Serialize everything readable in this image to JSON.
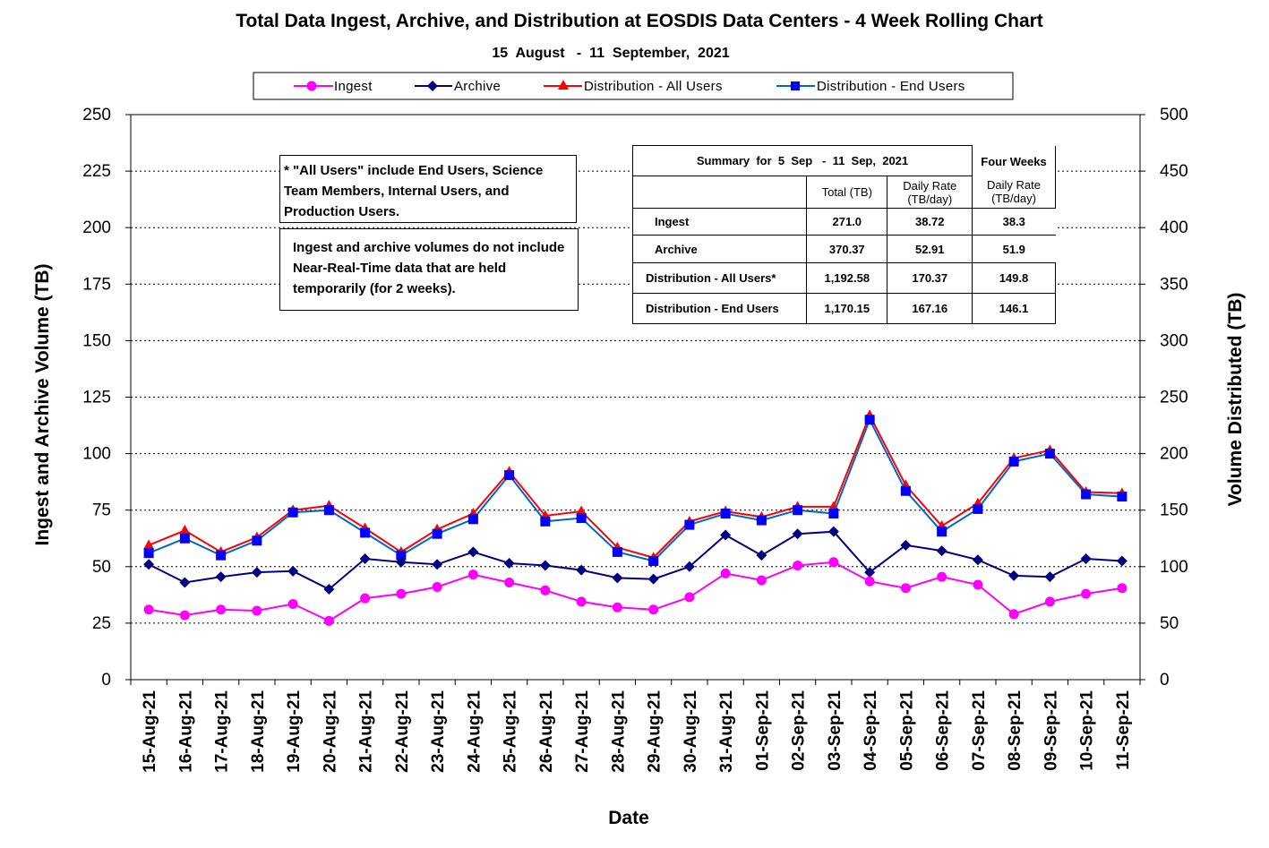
{
  "title": "Total Data Ingest, Archive, and  Distribution at EOSDIS Data Centers - 4 Week Rolling Chart",
  "subtitle": "15  August   -  11  September,  2021",
  "notes": {
    "all_users": " * \"All Users\" include End Users, Science Team Members,  Internal Users, and Production Users.",
    "nrt": "Ingest and archive volumes do not include Near-Real-Time data that are held temporarily (for 2 weeks)."
  },
  "summary": {
    "header": "Summary  for  5  Sep   -  11  Sep,  2021",
    "four_weeks": "Four Weeks",
    "col_total": "Total (TB)",
    "col_daily": "Daily Rate (TB/day)",
    "col_daily4": "Daily Rate (TB/day)",
    "rows": [
      {
        "label": "Ingest",
        "total": "271.0",
        "daily": "38.72",
        "four": "38.3"
      },
      {
        "label": "Archive",
        "total": "370.37",
        "daily": "52.91",
        "four": "51.9"
      },
      {
        "label": "Distribution - All Users*",
        "total": "1,192.58",
        "daily": "170.37",
        "four": "149.8"
      },
      {
        "label": "Distribution - End Users",
        "total": "1,170.15",
        "daily": "167.16",
        "four": "146.1"
      }
    ]
  },
  "colors": {
    "ingest": "#ff00ff",
    "archive": "#000080",
    "dist_all": "#ff0000",
    "dist_end": "#0066cc",
    "dist_end_marker": "#0000ff",
    "grid": "#000000"
  },
  "chart_data": {
    "type": "line",
    "title": "Total Data Ingest, Archive, and  Distribution at EOSDIS Data Centers - 4 Week Rolling Chart",
    "subtitle": "15  August   -  11  September,  2021",
    "xlabel": "Date",
    "ylabel_left": "Ingest and Archive Volume (TB)",
    "ylabel_right": "Volume Distributed (TB)",
    "ylim_left": [
      0,
      250
    ],
    "ylim_right": [
      0,
      500
    ],
    "yticks_left": [
      "0",
      "25",
      "50",
      "75",
      "100",
      "125",
      "150",
      "175",
      "200",
      "225",
      "250"
    ],
    "yticks_right": [
      "0",
      "50",
      "100",
      "150",
      "200",
      "250",
      "300",
      "350",
      "400",
      "450",
      "500"
    ],
    "grid": "horizontal dotted",
    "legend_position": "top",
    "categories": [
      "15-Aug-21",
      "16-Aug-21",
      "17-Aug-21",
      "18-Aug-21",
      "19-Aug-21",
      "20-Aug-21",
      "21-Aug-21",
      "22-Aug-21",
      "23-Aug-21",
      "24-Aug-21",
      "25-Aug-21",
      "26-Aug-21",
      "27-Aug-21",
      "28-Aug-21",
      "29-Aug-21",
      "30-Aug-21",
      "31-Aug-21",
      "01-Sep-21",
      "02-Sep-21",
      "03-Sep-21",
      "04-Sep-21",
      "05-Sep-21",
      "06-Sep-21",
      "07-Sep-21",
      "08-Sep-21",
      "09-Sep-21",
      "10-Sep-21",
      "11-Sep-21"
    ],
    "series": [
      {
        "name": "Ingest",
        "axis": "left",
        "marker": "circle",
        "values": [
          31,
          28.5,
          31,
          30.5,
          33.5,
          26,
          36,
          38,
          41,
          46.5,
          43,
          39.5,
          34.5,
          32,
          31,
          36.5,
          47,
          44,
          50.5,
          52,
          43.5,
          40.5,
          45.5,
          42,
          29,
          34.5,
          38,
          40.5
        ]
      },
      {
        "name": "Archive",
        "axis": "left",
        "marker": "diamond",
        "values": [
          51,
          43,
          45.5,
          47.5,
          48,
          40,
          53.5,
          52,
          51,
          56.5,
          51.5,
          50.5,
          48.5,
          45,
          44.5,
          50,
          64,
          55,
          64.5,
          65.5,
          47.5,
          59.5,
          57,
          53,
          46,
          45.5,
          53.5,
          52.5
        ]
      },
      {
        "name": "Distribution - All Users",
        "axis": "right",
        "marker": "triangle",
        "values": [
          119,
          132,
          113,
          126,
          150,
          154,
          134,
          113,
          133,
          147,
          184,
          145,
          149,
          117,
          108,
          140,
          149,
          144,
          153,
          153,
          234,
          172,
          136,
          156,
          196,
          203,
          166,
          165
        ]
      },
      {
        "name": "Distribution - End Users",
        "axis": "right",
        "marker": "square",
        "values": [
          112,
          125,
          110,
          123,
          148,
          150,
          130,
          110,
          129,
          142,
          181,
          140,
          143,
          113,
          105,
          137,
          147,
          141,
          150,
          147,
          230,
          167,
          131,
          151,
          193,
          200,
          164,
          162
        ]
      }
    ]
  }
}
